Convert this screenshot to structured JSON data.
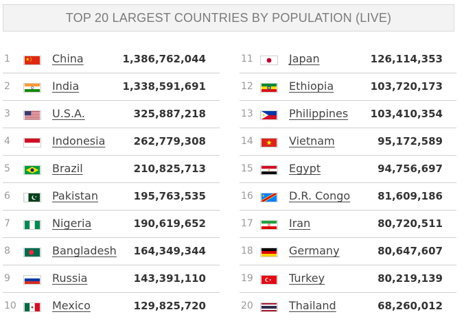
{
  "header": {
    "title": "TOP 20 LARGEST COUNTRIES BY POPULATION (LIVE)"
  },
  "countries": [
    {
      "rank": "1",
      "name": "China",
      "population": "1,386,762,044",
      "flag": "china-flag-icon"
    },
    {
      "rank": "2",
      "name": "India",
      "population": "1,338,591,691",
      "flag": "india-flag-icon"
    },
    {
      "rank": "3",
      "name": "U.S.A.",
      "population": "325,887,218",
      "flag": "usa-flag-icon"
    },
    {
      "rank": "4",
      "name": "Indonesia",
      "population": "262,779,308",
      "flag": "indonesia-flag-icon"
    },
    {
      "rank": "5",
      "name": "Brazil",
      "population": "210,825,713",
      "flag": "brazil-flag-icon"
    },
    {
      "rank": "6",
      "name": "Pakistan",
      "population": "195,763,535",
      "flag": "pakistan-flag-icon"
    },
    {
      "rank": "7",
      "name": "Nigeria",
      "population": "190,619,652",
      "flag": "nigeria-flag-icon"
    },
    {
      "rank": "8",
      "name": "Bangladesh",
      "population": "164,349,344",
      "flag": "bangladesh-flag-icon"
    },
    {
      "rank": "9",
      "name": "Russia",
      "population": "143,391,110",
      "flag": "russia-flag-icon"
    },
    {
      "rank": "10",
      "name": "Mexico",
      "population": "129,825,720",
      "flag": "mexico-flag-icon"
    },
    {
      "rank": "11",
      "name": "Japan",
      "population": "126,114,353",
      "flag": "japan-flag-icon"
    },
    {
      "rank": "12",
      "name": "Ethiopia",
      "population": "103,720,173",
      "flag": "ethiopia-flag-icon"
    },
    {
      "rank": "13",
      "name": "Philippines",
      "population": "103,410,354",
      "flag": "philippines-flag-icon"
    },
    {
      "rank": "14",
      "name": "Vietnam",
      "population": "95,172,589",
      "flag": "vietnam-flag-icon"
    },
    {
      "rank": "15",
      "name": "Egypt",
      "population": "94,756,697",
      "flag": "egypt-flag-icon"
    },
    {
      "rank": "16",
      "name": "D.R. Congo",
      "population": "81,609,186",
      "flag": "dr-congo-flag-icon"
    },
    {
      "rank": "17",
      "name": "Iran",
      "population": "80,720,511",
      "flag": "iran-flag-icon"
    },
    {
      "rank": "18",
      "name": "Germany",
      "population": "80,647,607",
      "flag": "germany-flag-icon"
    },
    {
      "rank": "19",
      "name": "Turkey",
      "population": "80,219,139",
      "flag": "turkey-flag-icon"
    },
    {
      "rank": "20",
      "name": "Thailand",
      "population": "68,260,012",
      "flag": "thailand-flag-icon"
    }
  ],
  "colors": {
    "title_bg": "#f3f3f3",
    "title_text": "#7a7a7a",
    "row_divider": "#cfcfcf",
    "link_text": "#444444"
  }
}
